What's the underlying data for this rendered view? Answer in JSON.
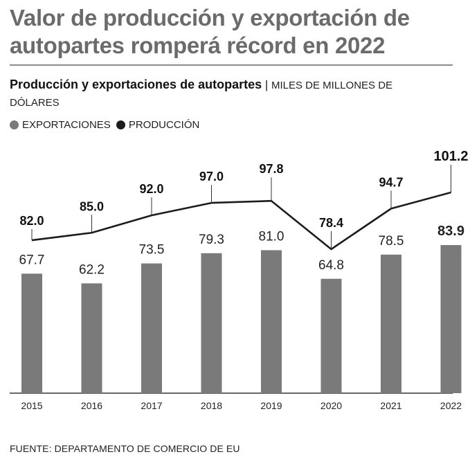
{
  "headline": "Valor de producción y exportación de autopartes romperá récord en 2022",
  "subtitle": {
    "title": "Producción y exportaciones de autopartes",
    "separator": "|",
    "units": "MILES DE MILLONES DE DÓLARES"
  },
  "colors": {
    "exports": "#7a7a7a",
    "production": "#1c1c1c",
    "headline": "#6b6b6b"
  },
  "chart_data": {
    "type": "bar+line",
    "title": "Producción y exportaciones de autopartes",
    "units": "MILES DE MILLONES DE DÓLARES",
    "categories": [
      "2015",
      "2016",
      "2017",
      "2018",
      "2019",
      "2020",
      "2021",
      "2022"
    ],
    "series": [
      {
        "name": "EXPORTACIONES",
        "type": "bar",
        "values": [
          67.7,
          62.2,
          73.5,
          79.3,
          81.0,
          64.8,
          78.5,
          83.9
        ],
        "labels": [
          "67.7",
          "62.2",
          "73.5",
          "79.3",
          "81.0",
          "64.8",
          "78.5",
          "83.9"
        ]
      },
      {
        "name": "PRODUCCIÓN",
        "type": "line",
        "values": [
          82.0,
          85.0,
          92.0,
          97.0,
          97.8,
          78.4,
          94.7,
          101.2
        ],
        "labels": [
          "82.0",
          "85.0",
          "92.0",
          "97.0",
          "97.8",
          "78.4",
          "94.7",
          "101.2"
        ]
      }
    ],
    "ylim": [
      0,
      120
    ],
    "grid": false,
    "legend": "top-left"
  },
  "source": "FUENTE: DEPARTAMENTO DE COMERCIO DE EU"
}
